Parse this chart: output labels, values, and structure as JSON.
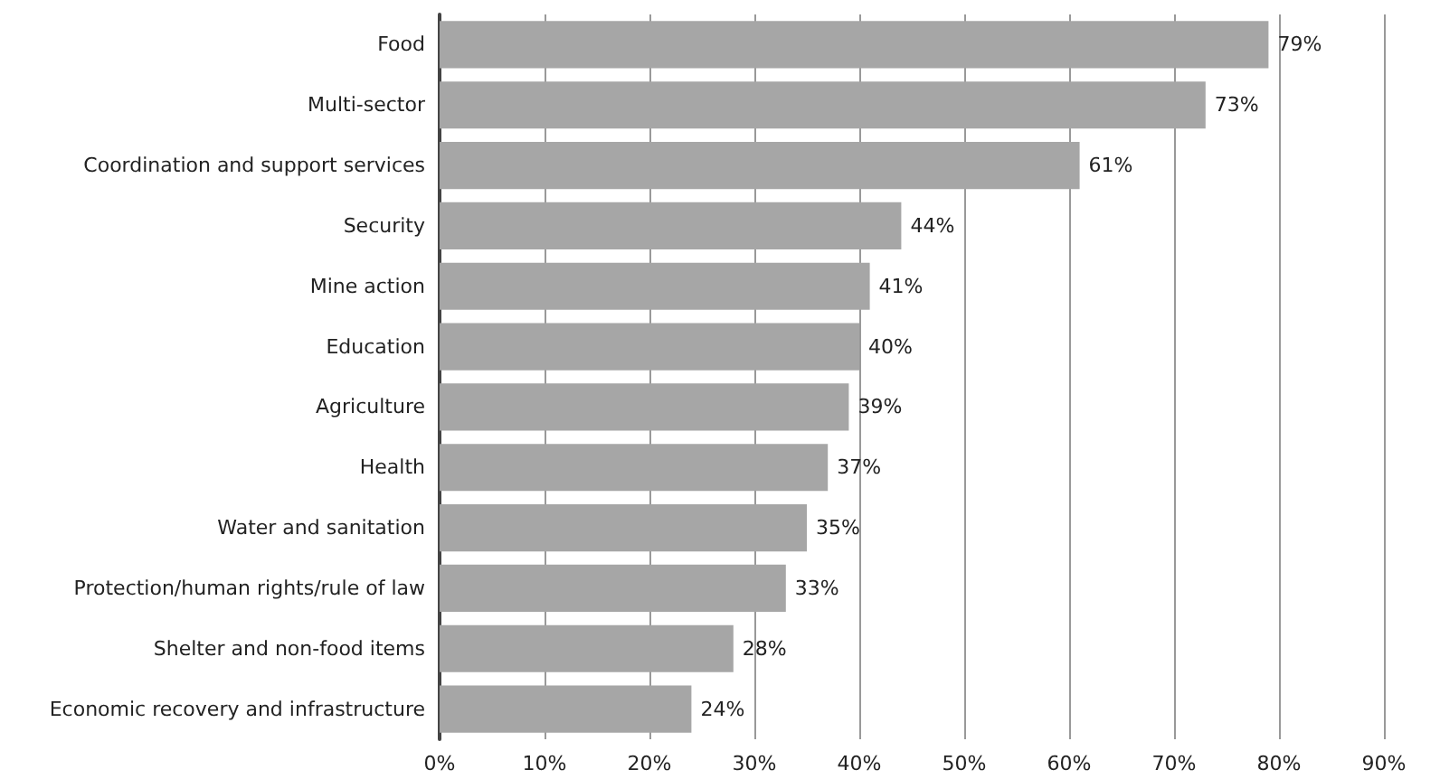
{
  "chart_data": {
    "type": "bar",
    "orientation": "horizontal",
    "categories": [
      "Food",
      "Multi-sector",
      "Coordination and support services",
      "Security",
      "Mine action",
      "Education",
      "Agriculture",
      "Health",
      "Water and sanitation",
      "Protection/human rights/rule of law",
      "Shelter and non-food items",
      "Economic recovery and infrastructure"
    ],
    "values": [
      79,
      73,
      61,
      44,
      41,
      40,
      39,
      37,
      35,
      33,
      28,
      24
    ],
    "value_labels": [
      "79%",
      "73%",
      "61%",
      "44%",
      "41%",
      "40%",
      "39%",
      "37%",
      "35%",
      "33%",
      "28%",
      "24%"
    ],
    "color": "#a6a6a6",
    "xlim": [
      0,
      90
    ],
    "xticks": [
      {
        "value": 0,
        "label": "0%"
      },
      {
        "value": 10,
        "label": "10%"
      },
      {
        "value": 20,
        "label": "20%"
      },
      {
        "value": 30,
        "label": "30%"
      },
      {
        "value": 40,
        "label": "40%"
      },
      {
        "value": 50,
        "label": "50%"
      },
      {
        "value": 60,
        "label": "60%"
      },
      {
        "value": 70,
        "label": "70%"
      },
      {
        "value": 80,
        "label": "80%"
      },
      {
        "value": 90,
        "label": "90%"
      }
    ],
    "grid": "x"
  }
}
